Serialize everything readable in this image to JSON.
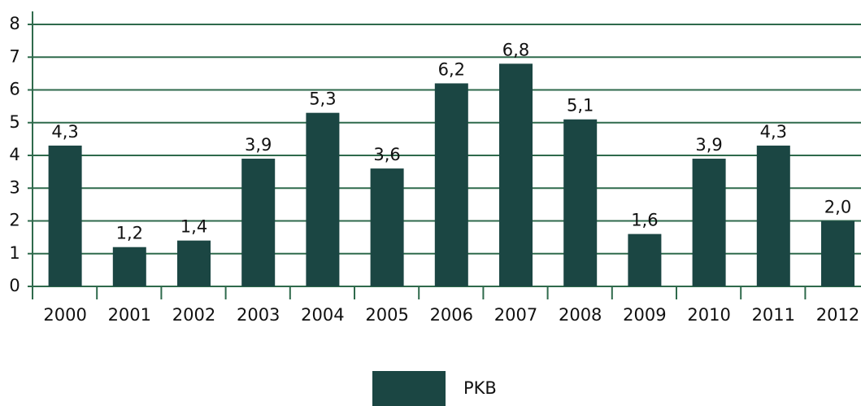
{
  "chart_data": {
    "type": "bar",
    "categories": [
      "2000",
      "2001",
      "2002",
      "2003",
      "2004",
      "2005",
      "2006",
      "2007",
      "2008",
      "2009",
      "2010",
      "2011",
      "2012"
    ],
    "series": [
      {
        "name": "PKB",
        "color": "#1b4643",
        "values": [
          4.3,
          1.2,
          1.4,
          3.9,
          5.3,
          3.6,
          6.2,
          6.8,
          5.1,
          1.6,
          3.9,
          4.3,
          2.0
        ],
        "value_labels": [
          "4,3",
          "1,2",
          "1,4",
          "3,9",
          "5,3",
          "3,6",
          "6,2",
          "6,8",
          "5,1",
          "1,6",
          "3,9",
          "4,3",
          "2,0"
        ]
      }
    ],
    "ylim": [
      0,
      8
    ],
    "yticks": [
      0,
      1,
      2,
      3,
      4,
      5,
      6,
      7,
      8
    ],
    "grid": true,
    "legend": "bottom"
  }
}
